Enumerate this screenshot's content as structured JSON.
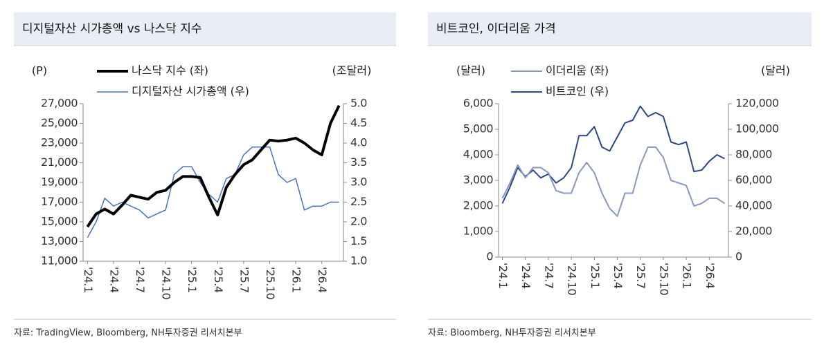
{
  "chart_data": [
    {
      "type": "line",
      "title": "디지털자산 시가총액 vs 나스닥 지수",
      "y_label": "(P)",
      "y2_label": "(조달러)",
      "source": "자료: TradingView, Bloomberg, NH투자증권 리서치본부",
      "categories": [
        "'24.1",
        null,
        null,
        "'24.4",
        null,
        null,
        "'24.7",
        null,
        null,
        "'24.10",
        null,
        null,
        "'25.1",
        null,
        null,
        "'25.4",
        null,
        null,
        "'25.7",
        null,
        null,
        "'25.10",
        null,
        null,
        "'26.1",
        null,
        null,
        "'26.4",
        null,
        null
      ],
      "ylim": [
        11000,
        27000
      ],
      "yticks": [
        {
          "value": 11000,
          "label": "11,000"
        },
        {
          "value": 13000,
          "label": "13,000"
        },
        {
          "value": 15000,
          "label": "15,000"
        },
        {
          "value": 17000,
          "label": "17,000"
        },
        {
          "value": 19000,
          "label": "19,000"
        },
        {
          "value": 21000,
          "label": "21,000"
        },
        {
          "value": 23000,
          "label": "23,000"
        },
        {
          "value": 25000,
          "label": "25,000"
        },
        {
          "value": 27000,
          "label": "27,000"
        }
      ],
      "y2lim": [
        1,
        5
      ],
      "y2ticks": [
        {
          "value": 1,
          "label": "1.0"
        },
        1.5,
        {
          "value": 2,
          "label": "2.0"
        },
        2.5,
        {
          "value": 3,
          "label": "3.0"
        },
        3.5,
        {
          "value": 4,
          "label": "4.0"
        },
        4.5,
        {
          "value": 5,
          "label": "5.0"
        }
      ],
      "series": [
        {
          "name": "나스닥 지수 (좌)",
          "color": "#000000",
          "width": 4,
          "values": [
            14500,
            15800,
            16300,
            15800,
            16700,
            17700,
            17500,
            17300,
            18000,
            18200,
            19000,
            19600,
            19600,
            19500,
            17500,
            15700,
            18500,
            19800,
            20800,
            21300,
            22300,
            23300,
            23200,
            23300,
            23500,
            23000,
            22300,
            21800,
            25000,
            26800
          ]
        },
        {
          "name": "디지털자산 시가총액 (우)",
          "color": "#4472c4",
          "width": 1.5,
          "axis": "y2",
          "values": [
            1.6,
            2.0,
            2.6,
            2.4,
            2.5,
            2.4,
            2.3,
            2.1,
            2.2,
            2.3,
            3.2,
            3.4,
            3.4,
            3.0,
            2.7,
            2.5,
            3.1,
            3.2,
            3.7,
            3.9,
            3.9,
            3.9,
            3.2,
            3.0,
            3.1,
            2.3,
            2.4,
            2.4,
            2.5,
            2.5
          ]
        }
      ]
    },
    {
      "type": "line",
      "title": "비트코인, 이더리움 가격",
      "y_label": "(달러)",
      "y2_label": "(달러)",
      "source": "자료: Bloomberg, NH투자증권 리서치본부",
      "categories": [
        "'24.1",
        null,
        null,
        "'24.4",
        null,
        null,
        "'24.7",
        null,
        null,
        "'24.10",
        null,
        null,
        "'25.1",
        null,
        null,
        "'25.4",
        null,
        null,
        "'25.7",
        null,
        null,
        "'25.10",
        null,
        null,
        "'26.1",
        null,
        null,
        "'26.4",
        null,
        null
      ],
      "ylim": [
        0,
        6000
      ],
      "yticks": [
        0,
        {
          "value": 1000,
          "label": "1,000"
        },
        {
          "value": 2000,
          "label": "2,000"
        },
        {
          "value": 3000,
          "label": "3,000"
        },
        {
          "value": 4000,
          "label": "4,000"
        },
        {
          "value": 5000,
          "label": "5,000"
        },
        {
          "value": 6000,
          "label": "6,000"
        }
      ],
      "y2lim": [
        0,
        120000
      ],
      "y2ticks": [
        0,
        {
          "value": 20000,
          "label": "20,000"
        },
        {
          "value": 40000,
          "label": "40,000"
        },
        {
          "value": 60000,
          "label": "60,000"
        },
        {
          "value": 80000,
          "label": "80,000"
        },
        {
          "value": 100000,
          "label": "100,000"
        },
        {
          "value": 120000,
          "label": "120,000"
        }
      ],
      "series": [
        {
          "name": "이더리움 (좌)",
          "color": "#8797c4",
          "width": 2,
          "values": [
            2300,
            2900,
            3600,
            3100,
            3500,
            3500,
            3300,
            2600,
            2500,
            2500,
            3300,
            3700,
            3300,
            2500,
            1900,
            1600,
            2500,
            2500,
            3600,
            4300,
            4300,
            3900,
            3000,
            2900,
            2800,
            2000,
            2100,
            2300,
            2300,
            2100
          ]
        },
        {
          "name": "비트코인 (우)",
          "color": "#2b4687",
          "width": 2,
          "axis": "y2",
          "values": [
            42000,
            55000,
            70000,
            63000,
            68000,
            62000,
            65000,
            58000,
            62000,
            70000,
            95000,
            95000,
            102000,
            86000,
            83000,
            94000,
            105000,
            107000,
            118000,
            110000,
            113000,
            110000,
            90000,
            88000,
            90000,
            67000,
            68000,
            75000,
            80000,
            77000
          ]
        }
      ]
    }
  ]
}
